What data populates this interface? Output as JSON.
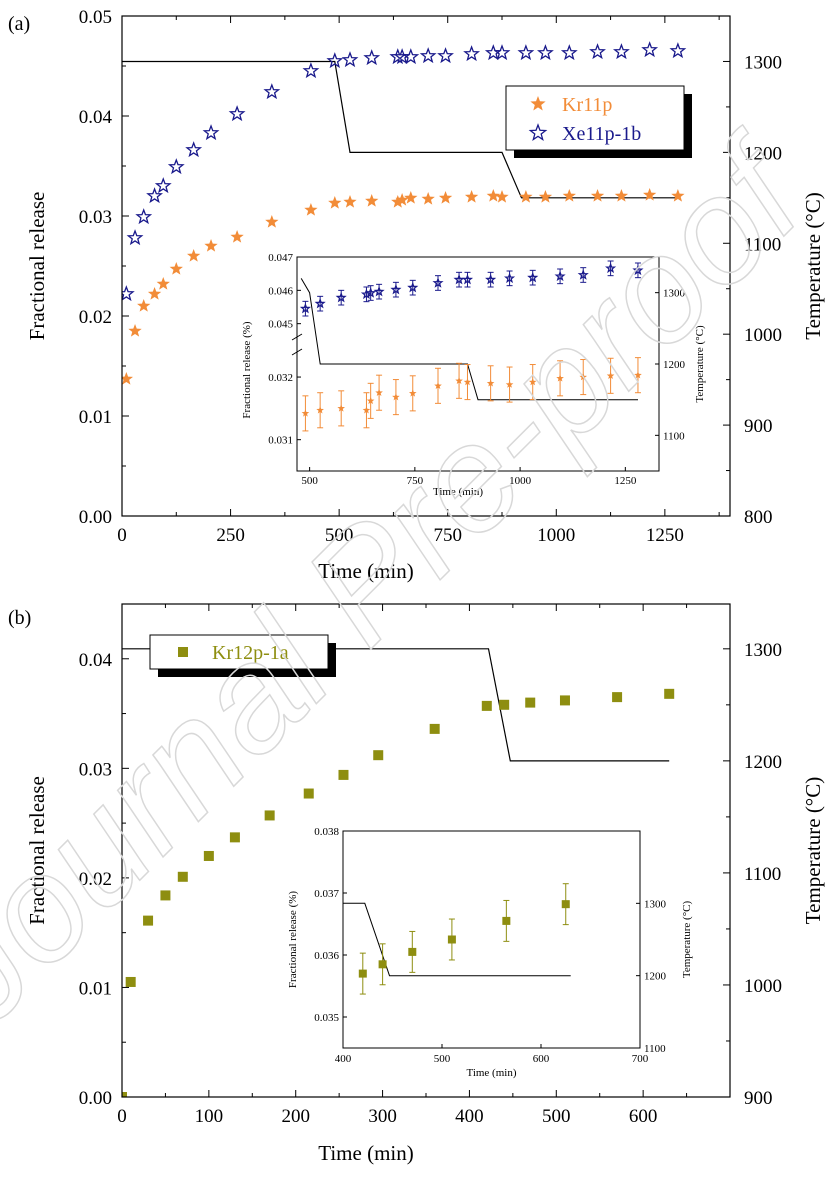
{
  "watermark": "Journal Pre-proof",
  "colors": {
    "kr": "#F28C38",
    "xe": "#1A1A8C",
    "olive": "#8E8E10",
    "line": "#000000",
    "watermark": "#D8D8D8"
  },
  "chart_data": [
    {
      "panel_label": "(a)",
      "type": "scatter",
      "xlabel": "Time (min)",
      "ylabel": "Fractional release",
      "y2label": "Temperature (°C)",
      "xlim": [
        0,
        1400
      ],
      "ylim": [
        0,
        0.05
      ],
      "y2lim": [
        800,
        1350
      ],
      "xticks": [
        0,
        250,
        500,
        750,
        1000,
        1250
      ],
      "yticks": [
        0.0,
        0.01,
        0.02,
        0.03,
        0.04,
        0.05
      ],
      "ytick_labels": [
        "0.00",
        "0.01",
        "0.02",
        "0.03",
        "0.04",
        "0.05"
      ],
      "y2ticks": [
        800,
        900,
        1000,
        1100,
        1200,
        1300
      ],
      "legend_location": "top-right",
      "series": [
        {
          "name": "Kr11p",
          "marker": "star-filled",
          "color": "#F28C38",
          "x": [
            10,
            30,
            50,
            75,
            95,
            125,
            165,
            205,
            265,
            345,
            435,
            490,
            525,
            575,
            635,
            645,
            665,
            705,
            745,
            805,
            855,
            875,
            930,
            975,
            1030,
            1095,
            1150,
            1215,
            1280
          ],
          "y": [
            0.0137,
            0.0185,
            0.021,
            0.0222,
            0.0232,
            0.0247,
            0.026,
            0.027,
            0.0279,
            0.0294,
            0.0306,
            0.0313,
            0.0314,
            0.0315,
            0.0314,
            0.0316,
            0.0318,
            0.0317,
            0.0318,
            0.0319,
            0.032,
            0.0319,
            0.0319,
            0.0319,
            0.032,
            0.032,
            0.032,
            0.0321,
            0.032
          ]
        },
        {
          "name": "Xe11p-1b",
          "marker": "star-open",
          "color": "#1A1A8C",
          "x": [
            10,
            30,
            50,
            75,
            95,
            125,
            165,
            205,
            265,
            345,
            435,
            490,
            525,
            575,
            635,
            645,
            665,
            705,
            745,
            805,
            855,
            875,
            930,
            975,
            1030,
            1095,
            1150,
            1215,
            1280
          ],
          "y": [
            0.0222,
            0.0278,
            0.0299,
            0.032,
            0.033,
            0.0349,
            0.0366,
            0.0383,
            0.0402,
            0.0424,
            0.0445,
            0.0455,
            0.0456,
            0.0458,
            0.0459,
            0.0459,
            0.0459,
            0.046,
            0.046,
            0.0462,
            0.0463,
            0.0463,
            0.0463,
            0.0463,
            0.0463,
            0.0464,
            0.0464,
            0.0466,
            0.0465
          ]
        },
        {
          "name": "Temperature",
          "axis": "right",
          "x": [
            0,
            490,
            525,
            875,
            920,
            1280
          ],
          "y": [
            1300,
            1300,
            1200,
            1200,
            1150,
            1150
          ]
        }
      ],
      "inset": {
        "xlabel": "Time (min)",
        "ylabel": "Fractional release (%)",
        "y2label": "Temperature (°C)",
        "xlim": [
          470,
          1330
        ],
        "xticks": [
          500,
          750,
          1000,
          1250
        ],
        "upper_yticks": [
          0.045,
          0.046,
          0.047
        ],
        "lower_yticks": [
          0.031,
          0.032
        ],
        "y2ticks": [
          1100,
          1200,
          1300
        ],
        "upper_ylim": [
          0.0446,
          0.047
        ],
        "lower_ylim": [
          0.0305,
          0.0324
        ],
        "y2lim": [
          1050,
          1350
        ],
        "kr": {
          "x": [
            490,
            525,
            575,
            635,
            645,
            665,
            705,
            745,
            805,
            855,
            875,
            930,
            975,
            1030,
            1095,
            1150,
            1215,
            1280
          ],
          "y": [
            0.03142,
            0.03147,
            0.0315,
            0.03147,
            0.03162,
            0.03175,
            0.03168,
            0.03174,
            0.03186,
            0.03194,
            0.03192,
            0.0319,
            0.03188,
            0.03192,
            0.03198,
            0.032,
            0.03202,
            0.03203
          ],
          "err": 0.00028
        },
        "xe": {
          "x": [
            490,
            525,
            575,
            635,
            645,
            665,
            705,
            745,
            805,
            855,
            875,
            930,
            975,
            1030,
            1095,
            1150,
            1215,
            1280
          ],
          "y": [
            0.04545,
            0.0456,
            0.04578,
            0.04588,
            0.04592,
            0.04596,
            0.04602,
            0.04608,
            0.04622,
            0.04632,
            0.04632,
            0.04632,
            0.04636,
            0.04638,
            0.04642,
            0.04646,
            0.04666,
            0.0466
          ],
          "err": 0.00022
        },
        "temperature": {
          "x": [
            480,
            500,
            525,
            875,
            900,
            1280
          ],
          "y": [
            1320,
            1300,
            1200,
            1200,
            1150,
            1150
          ]
        }
      }
    },
    {
      "panel_label": "(b)",
      "type": "scatter",
      "xlabel": "Time (min)",
      "ylabel": "Fractional release",
      "y2label": "Temperature (°C)",
      "xlim": [
        0,
        700
      ],
      "ylim": [
        0,
        0.045
      ],
      "y2lim": [
        900,
        1340
      ],
      "xticks": [
        0,
        100,
        200,
        300,
        400,
        500,
        600
      ],
      "yticks": [
        0.0,
        0.01,
        0.02,
        0.03,
        0.04
      ],
      "ytick_labels": [
        "0.00",
        "0.01",
        "0.02",
        "0.03",
        "0.04"
      ],
      "y2ticks": [
        900,
        1000,
        1100,
        1200,
        1300
      ],
      "legend_location": "top-left",
      "series": [
        {
          "name": "Kr12p-1a",
          "marker": "square-filled",
          "color": "#8E8E10",
          "x": [
            0,
            10,
            30,
            50,
            70,
            100,
            130,
            170,
            215,
            255,
            295,
            360,
            420,
            440,
            470,
            510,
            570,
            630
          ],
          "y": [
            0.0,
            0.0105,
            0.0161,
            0.0184,
            0.0201,
            0.022,
            0.0237,
            0.0257,
            0.0277,
            0.0294,
            0.0312,
            0.0336,
            0.0357,
            0.0358,
            0.036,
            0.0362,
            0.0365,
            0.0368
          ]
        },
        {
          "name": "Temperature",
          "axis": "right",
          "x": [
            0,
            422,
            447,
            630
          ],
          "y": [
            1300,
            1300,
            1200,
            1200
          ]
        }
      ],
      "inset": {
        "xlabel": "Time (min)",
        "ylabel": "Fractional release (%)",
        "y2label": "Temperature (°C)",
        "xlim": [
          400,
          700
        ],
        "ylim": [
          0.0345,
          0.038
        ],
        "y2lim": [
          1100,
          1400
        ],
        "xticks": [
          400,
          500,
          600,
          700
        ],
        "yticks": [
          0.035,
          0.036,
          0.037,
          0.038
        ],
        "y2ticks": [
          1100,
          1200,
          1300
        ],
        "kr": {
          "x": [
            420,
            440,
            470,
            510,
            565,
            625
          ],
          "y": [
            0.0357,
            0.03585,
            0.03605,
            0.03625,
            0.03655,
            0.03682
          ],
          "err": 0.00033
        },
        "temperature": {
          "x": [
            400,
            422,
            447,
            630
          ],
          "y": [
            1300,
            1300,
            1200,
            1200
          ]
        }
      }
    }
  ]
}
